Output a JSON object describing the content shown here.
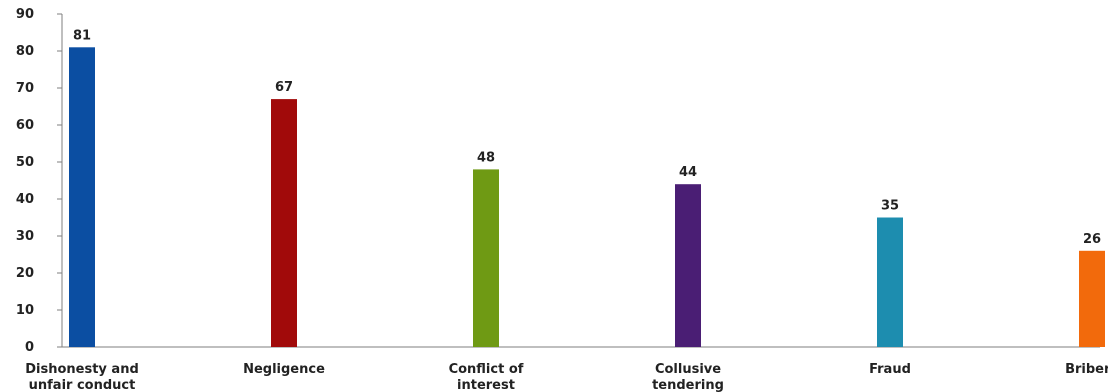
{
  "chart_data": {
    "type": "bar",
    "title": "",
    "xlabel": "",
    "ylabel": "",
    "ylim": [
      0,
      90
    ],
    "yticks": [
      0,
      10,
      20,
      30,
      40,
      50,
      60,
      70,
      80,
      90
    ],
    "grid": false,
    "legend": "none",
    "categories": [
      [
        "Dishonesty and",
        "unfair conduct"
      ],
      [
        "Negligence"
      ],
      [
        "Conflict of",
        "interest"
      ],
      [
        "Collusive",
        "tendering"
      ],
      [
        "Fraud"
      ],
      [
        "Bribery"
      ]
    ],
    "values": [
      81,
      67,
      48,
      44,
      35,
      26
    ],
    "colors": [
      "#0B4EA2",
      "#A10A0A",
      "#6F9A14",
      "#4A1E74",
      "#1D8DAF",
      "#F26A0C"
    ]
  }
}
